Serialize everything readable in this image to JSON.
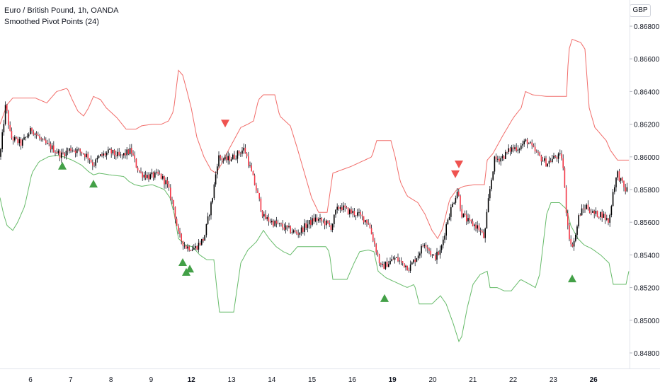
{
  "header": {
    "symbol": "Euro / British Pound, 1h, OANDA",
    "indicator": "Smoothed Pivot Points (24)"
  },
  "axis": {
    "currency": "GBP"
  },
  "chart_data": {
    "type": "candlestick",
    "x_ticks": [
      "6",
      "7",
      "8",
      "9",
      "12",
      "13",
      "14",
      "15",
      "16",
      "19",
      "20",
      "21",
      "22",
      "23",
      "26"
    ],
    "x_bold_ticks": [
      "12",
      "19",
      "26"
    ],
    "y_ticks": [
      0.868,
      0.866,
      0.864,
      0.862,
      0.86,
      0.858,
      0.856,
      0.854,
      0.852,
      0.85,
      0.848
    ],
    "ylim": [
      0.8472,
      0.8693
    ],
    "grid": false,
    "close_anchors": [
      [
        0,
        0.86
      ],
      [
        8,
        0.8632
      ],
      [
        15,
        0.8612
      ],
      [
        30,
        0.8608
      ],
      [
        45,
        0.8617
      ],
      [
        60,
        0.8609
      ],
      [
        75,
        0.8605
      ],
      [
        86,
        0.8601
      ],
      [
        100,
        0.8605
      ],
      [
        115,
        0.8603
      ],
      [
        125,
        0.86
      ],
      [
        132,
        0.8595
      ],
      [
        140,
        0.86
      ],
      [
        155,
        0.8603
      ],
      [
        170,
        0.86
      ],
      [
        185,
        0.8604
      ],
      [
        192,
        0.8595
      ],
      [
        198,
        0.859
      ],
      [
        210,
        0.8588
      ],
      [
        225,
        0.8589
      ],
      [
        235,
        0.8584
      ],
      [
        245,
        0.857
      ],
      [
        252,
        0.8552
      ],
      [
        262,
        0.8545
      ],
      [
        275,
        0.8544
      ],
      [
        288,
        0.855
      ],
      [
        300,
        0.8575
      ],
      [
        308,
        0.86
      ],
      [
        318,
        0.8598
      ],
      [
        330,
        0.86
      ],
      [
        345,
        0.8605
      ],
      [
        352,
        0.8595
      ],
      [
        365,
        0.8575
      ],
      [
        372,
        0.8563
      ],
      [
        385,
        0.856
      ],
      [
        395,
        0.8558
      ],
      [
        410,
        0.8555
      ],
      [
        420,
        0.8553
      ],
      [
        432,
        0.8558
      ],
      [
        445,
        0.8562
      ],
      [
        458,
        0.856
      ],
      [
        468,
        0.8557
      ],
      [
        474,
        0.8566
      ],
      [
        480,
        0.857
      ],
      [
        490,
        0.8567
      ],
      [
        505,
        0.8565
      ],
      [
        520,
        0.856
      ],
      [
        530,
        0.8545
      ],
      [
        538,
        0.8532
      ],
      [
        548,
        0.8535
      ],
      [
        558,
        0.8538
      ],
      [
        568,
        0.8535
      ],
      [
        578,
        0.8532
      ],
      [
        590,
        0.854
      ],
      [
        600,
        0.8548
      ],
      [
        612,
        0.8538
      ],
      [
        622,
        0.8542
      ],
      [
        632,
        0.8562
      ],
      [
        640,
        0.8572
      ],
      [
        646,
        0.858
      ],
      [
        652,
        0.8565
      ],
      [
        662,
        0.856
      ],
      [
        675,
        0.8557
      ],
      [
        684,
        0.855
      ],
      [
        690,
        0.8575
      ],
      [
        698,
        0.8598
      ],
      [
        710,
        0.86
      ],
      [
        722,
        0.8605
      ],
      [
        734,
        0.8606
      ],
      [
        744,
        0.861
      ],
      [
        752,
        0.8605
      ],
      [
        762,
        0.86
      ],
      [
        772,
        0.8596
      ],
      [
        784,
        0.86
      ],
      [
        794,
        0.86
      ],
      [
        800,
        0.8565
      ],
      [
        806,
        0.8545
      ],
      [
        812,
        0.855
      ],
      [
        818,
        0.8565
      ],
      [
        828,
        0.857
      ],
      [
        838,
        0.8565
      ],
      [
        850,
        0.8565
      ],
      [
        860,
        0.856
      ],
      [
        866,
        0.858
      ],
      [
        872,
        0.859
      ],
      [
        882,
        0.858
      ],
      [
        888,
        0.858
      ]
    ],
    "series": [
      {
        "color": "#ef5350",
        "anchors": [
          [
            0,
            0.862
          ],
          [
            10,
            0.8632
          ],
          [
            18,
            0.8636
          ],
          [
            35,
            0.8636
          ],
          [
            50,
            0.8636
          ],
          [
            66,
            0.8633
          ],
          [
            80,
            0.864
          ],
          [
            95,
            0.8642
          ],
          [
            102,
            0.8635
          ],
          [
            110,
            0.8628
          ],
          [
            118,
            0.8625
          ],
          [
            125,
            0.863
          ],
          [
            132,
            0.8637
          ],
          [
            142,
            0.8635
          ],
          [
            150,
            0.863
          ],
          [
            165,
            0.8624
          ],
          [
            178,
            0.8617
          ],
          [
            192,
            0.8617
          ],
          [
            200,
            0.8619
          ],
          [
            215,
            0.862
          ],
          [
            228,
            0.862
          ],
          [
            238,
            0.8622
          ],
          [
            245,
            0.8628
          ],
          [
            252,
            0.8653
          ],
          [
            258,
            0.865
          ],
          [
            263,
            0.8642
          ],
          [
            270,
            0.863
          ],
          [
            278,
            0.8612
          ],
          [
            288,
            0.86
          ],
          [
            298,
            0.8592
          ],
          [
            305,
            0.859
          ],
          [
            312,
            0.8595
          ],
          [
            320,
            0.8602
          ],
          [
            330,
            0.861
          ],
          [
            340,
            0.8618
          ],
          [
            350,
            0.862
          ],
          [
            358,
            0.8622
          ],
          [
            365,
            0.8635
          ],
          [
            372,
            0.8638
          ],
          [
            388,
            0.8638
          ],
          [
            395,
            0.8625
          ],
          [
            410,
            0.8619
          ],
          [
            420,
            0.8605
          ],
          [
            430,
            0.859
          ],
          [
            440,
            0.8575
          ],
          [
            450,
            0.8566
          ],
          [
            462,
            0.8566
          ],
          [
            470,
            0.859
          ],
          [
            482,
            0.8592
          ],
          [
            495,
            0.8594
          ],
          [
            510,
            0.8597
          ],
          [
            525,
            0.86
          ],
          [
            532,
            0.861
          ],
          [
            542,
            0.861
          ],
          [
            552,
            0.861
          ],
          [
            558,
            0.86
          ],
          [
            565,
            0.8585
          ],
          [
            575,
            0.8576
          ],
          [
            590,
            0.8572
          ],
          [
            600,
            0.8565
          ],
          [
            610,
            0.8555
          ],
          [
            618,
            0.855
          ],
          [
            625,
            0.8556
          ],
          [
            635,
            0.8574
          ],
          [
            645,
            0.858
          ],
          [
            655,
            0.8582
          ],
          [
            670,
            0.8583
          ],
          [
            684,
            0.8583
          ],
          [
            688,
            0.8598
          ],
          [
            696,
            0.8602
          ],
          [
            710,
            0.8613
          ],
          [
            725,
            0.8624
          ],
          [
            736,
            0.863
          ],
          [
            742,
            0.864
          ],
          [
            752,
            0.8638
          ],
          [
            772,
            0.8637
          ],
          [
            790,
            0.8637
          ],
          [
            800,
            0.8637
          ],
          [
            803,
            0.8665
          ],
          [
            808,
            0.8672
          ],
          [
            820,
            0.867
          ],
          [
            826,
            0.8666
          ],
          [
            832,
            0.863
          ],
          [
            840,
            0.8618
          ],
          [
            856,
            0.861
          ],
          [
            862,
            0.8604
          ],
          [
            872,
            0.8598
          ],
          [
            888,
            0.8598
          ]
        ]
      },
      {
        "color": "#4caf50",
        "anchors": [
          [
            0,
            0.8575
          ],
          [
            5,
            0.8565
          ],
          [
            10,
            0.8558
          ],
          [
            18,
            0.8555
          ],
          [
            25,
            0.856
          ],
          [
            35,
            0.857
          ],
          [
            45,
            0.859
          ],
          [
            55,
            0.8597
          ],
          [
            68,
            0.86
          ],
          [
            80,
            0.8601
          ],
          [
            90,
            0.86
          ],
          [
            102,
            0.8598
          ],
          [
            115,
            0.8595
          ],
          [
            125,
            0.8591
          ],
          [
            132,
            0.8589
          ],
          [
            140,
            0.859
          ],
          [
            155,
            0.8589
          ],
          [
            175,
            0.8588
          ],
          [
            182,
            0.8585
          ],
          [
            190,
            0.8583
          ],
          [
            200,
            0.8582
          ],
          [
            215,
            0.8583
          ],
          [
            232,
            0.858
          ],
          [
            240,
            0.8575
          ],
          [
            246,
            0.8565
          ],
          [
            252,
            0.855
          ],
          [
            262,
            0.8546
          ],
          [
            272,
            0.8545
          ],
          [
            282,
            0.854
          ],
          [
            292,
            0.8537
          ],
          [
            302,
            0.8537
          ],
          [
            306,
            0.852
          ],
          [
            310,
            0.8505
          ],
          [
            330,
            0.8505
          ],
          [
            340,
            0.8535
          ],
          [
            350,
            0.8543
          ],
          [
            362,
            0.8548
          ],
          [
            372,
            0.8555
          ],
          [
            380,
            0.855
          ],
          [
            390,
            0.8545
          ],
          [
            400,
            0.8542
          ],
          [
            410,
            0.854
          ],
          [
            420,
            0.8545
          ],
          [
            435,
            0.8545
          ],
          [
            460,
            0.8545
          ],
          [
            465,
            0.8542
          ],
          [
            470,
            0.8525
          ],
          [
            490,
            0.8525
          ],
          [
            500,
            0.8535
          ],
          [
            508,
            0.8542
          ],
          [
            520,
            0.8543
          ],
          [
            528,
            0.8542
          ],
          [
            534,
            0.853
          ],
          [
            545,
            0.8526
          ],
          [
            560,
            0.8523
          ],
          [
            575,
            0.852
          ],
          [
            585,
            0.8522
          ],
          [
            592,
            0.851
          ],
          [
            610,
            0.851
          ],
          [
            622,
            0.8515
          ],
          [
            630,
            0.851
          ],
          [
            640,
            0.8498
          ],
          [
            648,
            0.8487
          ],
          [
            652,
            0.849
          ],
          [
            660,
            0.8508
          ],
          [
            668,
            0.8522
          ],
          [
            678,
            0.8528
          ],
          [
            688,
            0.853
          ],
          [
            692,
            0.852
          ],
          [
            702,
            0.852
          ],
          [
            712,
            0.8518
          ],
          [
            722,
            0.8518
          ],
          [
            735,
            0.8525
          ],
          [
            748,
            0.8522
          ],
          [
            756,
            0.852
          ],
          [
            762,
            0.8528
          ],
          [
            772,
            0.8565
          ],
          [
            778,
            0.8572
          ],
          [
            790,
            0.8572
          ],
          [
            800,
            0.8568
          ],
          [
            806,
            0.8558
          ],
          [
            816,
            0.855
          ],
          [
            825,
            0.8546
          ],
          [
            835,
            0.8544
          ],
          [
            848,
            0.854
          ],
          [
            860,
            0.8535
          ],
          [
            866,
            0.8522
          ],
          [
            878,
            0.8522
          ],
          [
            884,
            0.8522
          ],
          [
            888,
            0.853
          ]
        ]
      }
    ],
    "pivot_lows": [
      [
        88,
        0.8597
      ],
      [
        132,
        0.8586
      ],
      [
        258,
        0.8538
      ],
      [
        263,
        0.8532
      ],
      [
        268,
        0.8534
      ],
      [
        543,
        0.8516
      ],
      [
        808,
        0.8528
      ]
    ],
    "pivot_highs": [
      [
        318,
        0.8618
      ],
      [
        643,
        0.8587
      ],
      [
        648,
        0.8593
      ]
    ],
    "colors": {
      "bull": "#000000",
      "bear": "#f23645",
      "wick": "#131722",
      "pivot_high": "#ef5350",
      "pivot_low": "#43a047",
      "axis_text": "#131722",
      "border": "#e0e3eb"
    }
  }
}
